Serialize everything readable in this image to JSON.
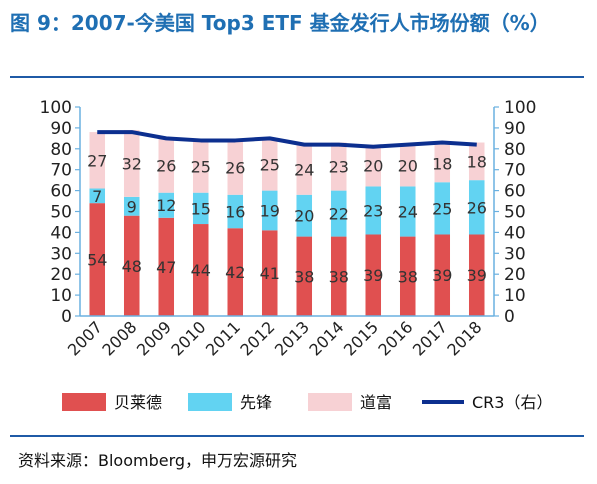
{
  "title": "图 9：2007-今美国 Top3 ETF 基金发行人市场份额（%）",
  "source": "资料来源：Bloomberg，申万宏源研究",
  "chart_data": {
    "type": "bar",
    "categories": [
      "2007",
      "2008",
      "2009",
      "2010",
      "2011",
      "2012",
      "2013",
      "2014",
      "2015",
      "2016",
      "2017",
      "2018"
    ],
    "series": [
      {
        "name": "贝莱德",
        "values": [
          54,
          48,
          47,
          44,
          42,
          41,
          38,
          38,
          39,
          38,
          39,
          39
        ],
        "color": "#e05050"
      },
      {
        "name": "先锋",
        "values": [
          7,
          9,
          12,
          15,
          16,
          19,
          20,
          22,
          23,
          24,
          25,
          26
        ],
        "color": "#62d3f2"
      },
      {
        "name": "道富",
        "values": [
          27,
          32,
          26,
          25,
          26,
          25,
          24,
          23,
          20,
          20,
          18,
          18
        ],
        "color": "#f7d1d4"
      },
      {
        "name": "CR3（右）",
        "values": [
          88,
          88,
          85,
          84,
          84,
          85,
          82,
          82,
          81,
          82,
          83,
          82
        ],
        "color": "#0c2f8f",
        "type": "line",
        "axis": "right"
      }
    ],
    "y_ticks": [
      "0",
      "10",
      "20",
      "30",
      "40",
      "50",
      "60",
      "70",
      "80",
      "90",
      "100"
    ],
    "ylim": [
      0,
      100
    ],
    "y2lim": [
      0,
      100
    ],
    "legend_position": "bottom",
    "grid": false
  }
}
